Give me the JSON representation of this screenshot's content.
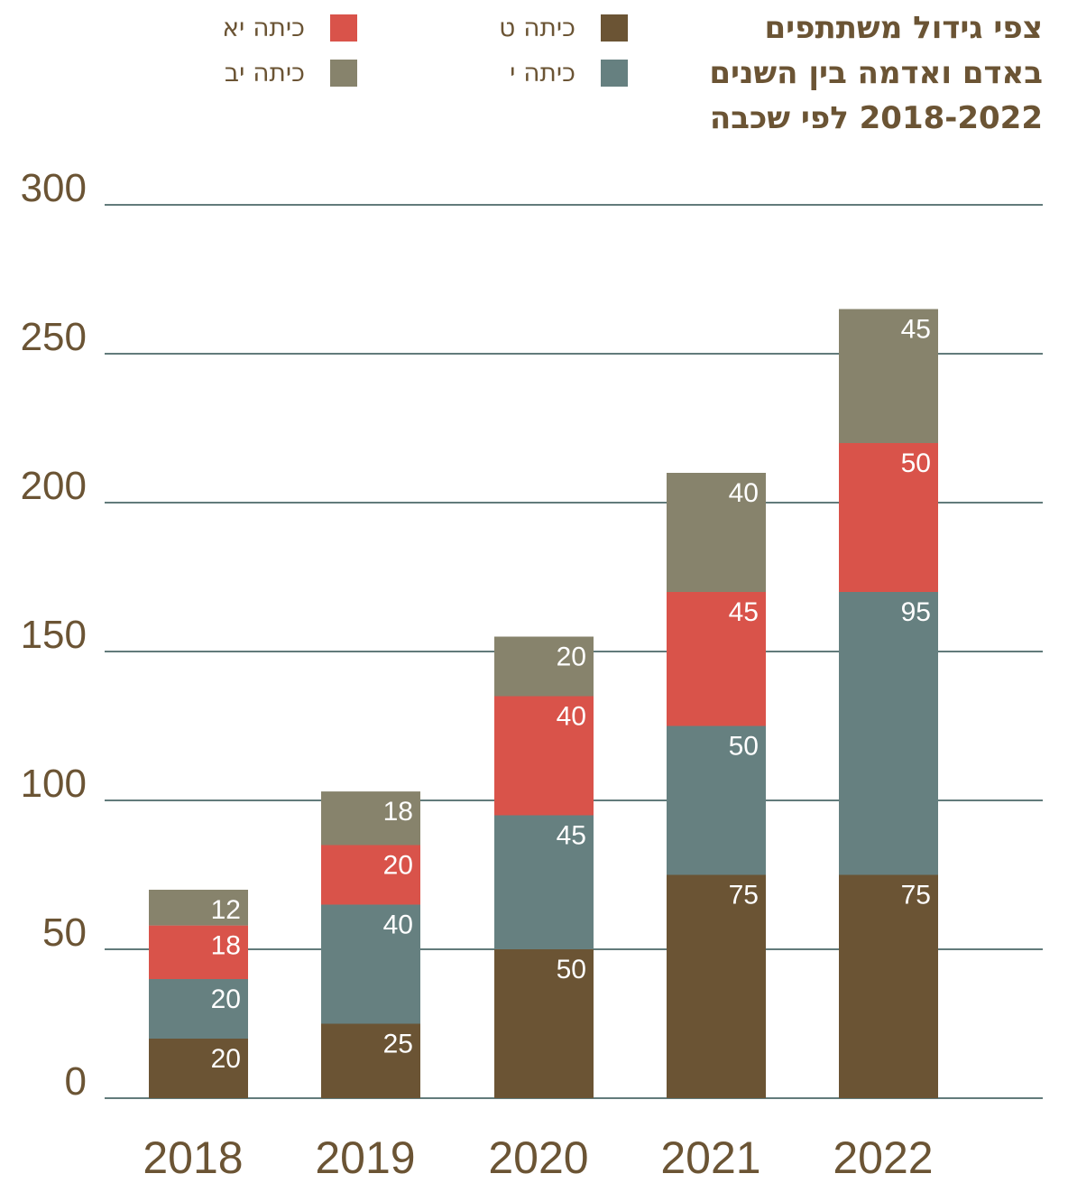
{
  "colors": {
    "grid": "#627b7b",
    "text": "#6b5434"
  },
  "chart_data": {
    "type": "bar",
    "stacked": true,
    "title_lines": [
      "צפי גידול משתתפים",
      "באדם ואדמה בין השנים",
      "2018-2022 לפי שכבה"
    ],
    "categories": [
      "2018",
      "2019",
      "2020",
      "2021",
      "2022"
    ],
    "ylim": [
      0,
      300
    ],
    "yticks": [
      0,
      50,
      100,
      150,
      200,
      250,
      300
    ],
    "grid": true,
    "legend_position": "top",
    "series": [
      {
        "name": "כיתה ט",
        "color": "#6b5434",
        "values": [
          20,
          25,
          50,
          75,
          75
        ]
      },
      {
        "name": "כיתה י",
        "color": "#668080",
        "values": [
          20,
          40,
          45,
          50,
          95
        ]
      },
      {
        "name": "כיתה יא",
        "color": "#d9534a",
        "values": [
          18,
          20,
          40,
          45,
          50
        ]
      },
      {
        "name": "כיתה יב",
        "color": "#87836c",
        "values": [
          12,
          18,
          20,
          40,
          45
        ]
      }
    ]
  }
}
